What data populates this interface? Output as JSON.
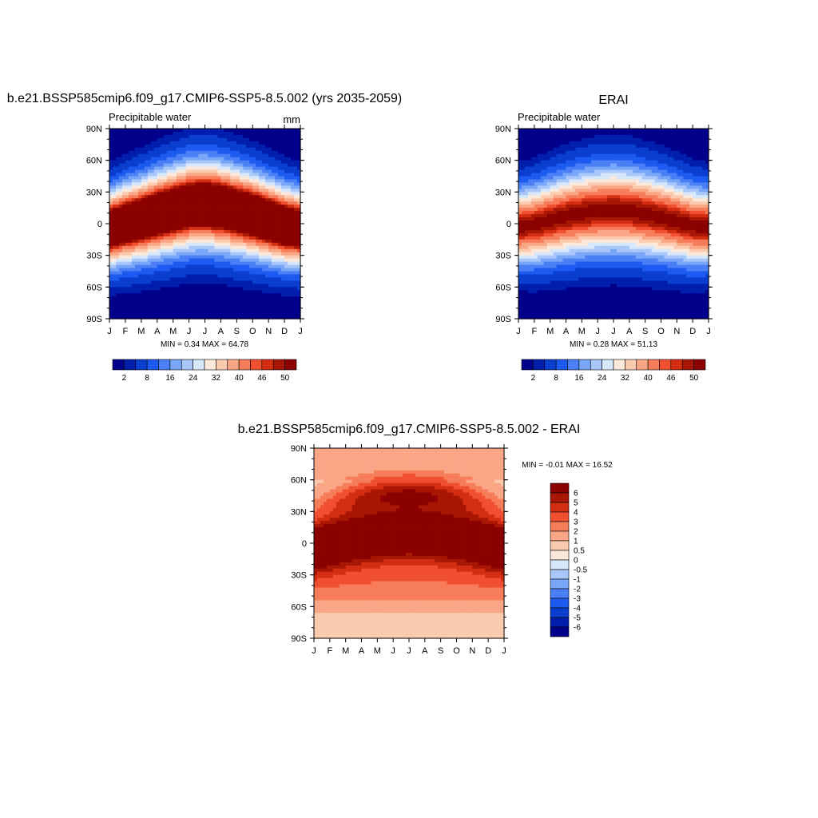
{
  "palette": {
    "seq": [
      "#00008b",
      "#001fad",
      "#0a3ecf",
      "#1c5af0",
      "#4a7ff5",
      "#7aa6f7",
      "#a9c8f9",
      "#d7e8fb",
      "#fde9dc",
      "#fbcbb0",
      "#f8a685",
      "#f77d5a",
      "#f05030",
      "#d42e12",
      "#a81606",
      "#8b0000"
    ],
    "diff": [
      "#00008b",
      "#001fad",
      "#0a3ecf",
      "#1c5af0",
      "#4a7ff5",
      "#7aa6f7",
      "#a9c8f9",
      "#d7e8fb",
      "#fde9dc",
      "#fbcbb0",
      "#f8a685",
      "#f77d5a",
      "#f05030",
      "#d42e12",
      "#a81606",
      "#8b0000"
    ]
  },
  "month_labels": [
    "J",
    "F",
    "M",
    "A",
    "M",
    "J",
    "J",
    "A",
    "S",
    "O",
    "N",
    "D",
    "J"
  ],
  "lat_labels": [
    "90N",
    "60N",
    "30N",
    "0",
    "30S",
    "60S",
    "90S"
  ],
  "chart_data": [
    {
      "type": "heatmap",
      "title": "b.e21.BSSP585cmip6.f09_g17.CMIP6-SSP5-8.5.002 (yrs 2035-2059)",
      "left_string": "Precipitable water",
      "right_string": "mm",
      "stats": "MIN =   0.34 MAX =  64.78",
      "x_ticks": [
        "J",
        "F",
        "M",
        "A",
        "M",
        "J",
        "J",
        "A",
        "S",
        "O",
        "N",
        "D",
        "J"
      ],
      "y_ticks": [
        "90N",
        "60N",
        "30N",
        "0",
        "30S",
        "60S",
        "90S"
      ],
      "colorbar": {
        "orientation": "horizontal",
        "labels": [
          "2",
          "8",
          "16",
          "24",
          "32",
          "40",
          "46",
          "50"
        ]
      },
      "peak_lat": [
        -5,
        0,
        4,
        9,
        13,
        17,
        18,
        16,
        12,
        8,
        3,
        -2,
        -5
      ],
      "peak_value": 64.78,
      "min_value": 0.34
    },
    {
      "type": "heatmap",
      "title": "ERAI",
      "left_string": "Precipitable water",
      "right_string": "",
      "stats": "MIN =   0.28 MAX =  51.13",
      "x_ticks": [
        "J",
        "F",
        "M",
        "A",
        "M",
        "J",
        "J",
        "A",
        "S",
        "O",
        "N",
        "D",
        "J"
      ],
      "y_ticks": [
        "90N",
        "60N",
        "30N",
        "0",
        "30S",
        "60S",
        "90S"
      ],
      "colorbar": {
        "orientation": "horizontal",
        "labels": [
          "2",
          "8",
          "16",
          "24",
          "32",
          "40",
          "46",
          "50"
        ]
      },
      "peak_lat": [
        -3,
        -1,
        3,
        7,
        10,
        12,
        13,
        12,
        9,
        6,
        2,
        -2,
        -3
      ],
      "peak_value": 51.13,
      "min_value": 0.28
    },
    {
      "type": "heatmap",
      "title": "b.e21.BSSP585cmip6.f09_g17.CMIP6-SSP5-8.5.002 - ERAI",
      "stats": "MIN =  -0.01 MAX =  16.52",
      "x_ticks": [
        "J",
        "F",
        "M",
        "A",
        "M",
        "J",
        "J",
        "A",
        "S",
        "O",
        "N",
        "D",
        "J"
      ],
      "y_ticks": [
        "90N",
        "60N",
        "30N",
        "0",
        "30S",
        "60S",
        "90S"
      ],
      "colorbar": {
        "orientation": "vertical",
        "labels": [
          "6",
          "5",
          "4",
          "3",
          "2",
          "1",
          "0.5",
          "0",
          "-0.5",
          "-1",
          "-2",
          "-3",
          "-4",
          "-5",
          "-6"
        ]
      },
      "min_value": -0.01,
      "max_value": 16.52
    }
  ]
}
